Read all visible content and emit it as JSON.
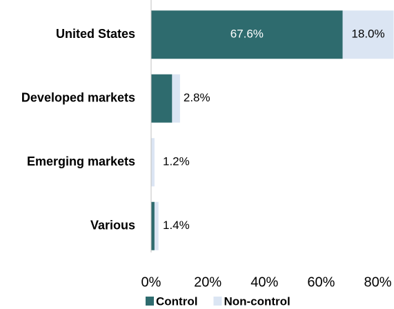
{
  "chart_data": {
    "type": "stacked_barh",
    "categories": [
      "United States",
      "Developed markets",
      "Emerging markets",
      "Various"
    ],
    "series": [
      {
        "name": "Control",
        "color": "#2e6b6e",
        "values": [
          67.6,
          7.4,
          0,
          1.2
        ],
        "value_labels": [
          "67.6%",
          null,
          null,
          null
        ]
      },
      {
        "name": "Non-control",
        "color": "#dbe5f3",
        "values": [
          18.0,
          2.8,
          1.2,
          1.4
        ],
        "value_labels": [
          "18.0%",
          "2.8%",
          "1.2%",
          "1.4%"
        ]
      }
    ],
    "xlim": [
      0,
      80
    ],
    "xticks": [
      {
        "value": 0,
        "label": "0%"
      },
      {
        "value": 20,
        "label": "20%"
      },
      {
        "value": 40,
        "label": "40%"
      },
      {
        "value": 60,
        "label": "60%"
      },
      {
        "value": 80,
        "label": "80%"
      }
    ],
    "legend": "bottom"
  }
}
